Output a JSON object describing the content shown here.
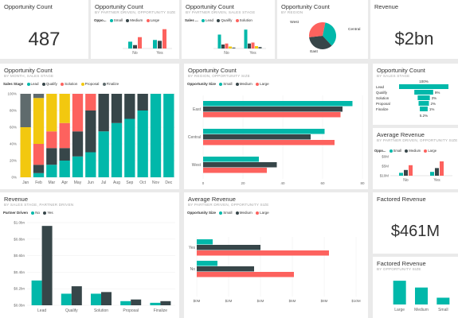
{
  "colors": {
    "small": "#01b8aa",
    "medium": "#374649",
    "large": "#fd625e",
    "lead": "#01b8aa",
    "qualify": "#374649",
    "solution": "#fd625e",
    "proposal": "#f2c80f",
    "finalize": "#5f6b6d"
  },
  "t1": {
    "title": "Opportunity Count",
    "value": "487"
  },
  "t2": {
    "title": "Opportunity Count",
    "subtitle": "BY PARTNER DRIVEN, OPPORTUNITY SIZE",
    "legend_title": "Oppo...",
    "legend": [
      "Small",
      "Medium",
      "Large"
    ],
    "chart_data": {
      "type": "bar",
      "categories": [
        "No",
        "Yes"
      ],
      "series": [
        {
          "name": "Small",
          "values": [
            24,
            30
          ]
        },
        {
          "name": "Medium",
          "values": [
            12,
            27
          ]
        },
        {
          "name": "Large",
          "values": [
            40,
            68
          ]
        }
      ]
    }
  },
  "t3": {
    "title": "Opportunity Count",
    "subtitle": "BY PARTNER DRIVEN, SALES STAGE",
    "legend_title": "Sales ...",
    "legend": [
      "Lead",
      "Qualify",
      "Solution"
    ],
    "chart_data": {
      "type": "bar",
      "categories": [
        "No",
        "Yes"
      ],
      "series": [
        {
          "name": "Lead",
          "values": [
            70,
            95
          ]
        },
        {
          "name": "Qualify",
          "values": [
            20,
            25
          ]
        },
        {
          "name": "Solution",
          "values": [
            25,
            30
          ]
        },
        {
          "name": "Proposal",
          "values": [
            10,
            12
          ]
        },
        {
          "name": "Finalize",
          "values": [
            5,
            8
          ]
        }
      ]
    }
  },
  "t4": {
    "title": "Opportunity Count",
    "subtitle": "BY REGION",
    "chart_data": {
      "type": "pie",
      "labels": [
        "Central",
        "East",
        "West"
      ],
      "values": [
        35,
        35,
        30
      ]
    }
  },
  "t5": {
    "title": "Revenue",
    "value": "$2bn"
  },
  "t6": {
    "title": "Opportunity Count",
    "subtitle": "BY MONTH, SALES STAGE",
    "legend_title": "Sales Stage",
    "legend": [
      "Lead",
      "Qualify",
      "Solution",
      "Proposal",
      "Finalize"
    ],
    "chart_data": {
      "type": "bar",
      "stacked": "100%",
      "categories": [
        "Jan",
        "Feb",
        "Mar",
        "Apr",
        "May",
        "Jun",
        "Jul",
        "Aug",
        "Sep",
        "Oct",
        "Nov",
        "Dec"
      ],
      "yticks": [
        "0%",
        "20%",
        "40%",
        "60%",
        "80%",
        "100%"
      ],
      "series": [
        {
          "name": "Lead",
          "values": [
            0,
            5,
            15,
            20,
            25,
            30,
            55,
            65,
            70,
            80,
            100,
            100
          ]
        },
        {
          "name": "Qualify",
          "values": [
            0,
            10,
            20,
            15,
            30,
            50,
            45,
            35,
            30,
            20,
            0,
            0
          ]
        },
        {
          "name": "Solution",
          "values": [
            0,
            25,
            20,
            30,
            45,
            20,
            0,
            0,
            0,
            0,
            0,
            0
          ]
        },
        {
          "name": "Proposal",
          "values": [
            60,
            55,
            45,
            35,
            0,
            0,
            0,
            0,
            0,
            0,
            0,
            0
          ]
        },
        {
          "name": "Finalize",
          "values": [
            40,
            5,
            0,
            0,
            0,
            0,
            0,
            0,
            0,
            0,
            0,
            0
          ]
        }
      ]
    }
  },
  "t7": {
    "title": "Opportunity Count",
    "subtitle": "BY REGION, OPPORTUNITY SIZE",
    "legend_title": "Opportunity Size",
    "legend": [
      "Small",
      "Medium",
      "Large"
    ],
    "chart_data": {
      "type": "bar",
      "orientation": "horizontal",
      "categories": [
        "East",
        "Central",
        "West"
      ],
      "xticks": [
        "0",
        "20",
        "40",
        "60",
        "80"
      ],
      "xlim": [
        0,
        80
      ],
      "series": [
        {
          "name": "Small",
          "values": [
            75,
            61,
            28
          ]
        },
        {
          "name": "Medium",
          "values": [
            70,
            54,
            37
          ]
        },
        {
          "name": "Large",
          "values": [
            69,
            66,
            32
          ]
        }
      ]
    }
  },
  "t8": {
    "title": "Opportunity Count",
    "subtitle": "BY SALES STAGE",
    "chart_data": {
      "type": "funnel",
      "labels": [
        "Lead",
        "Qualify",
        "Solution",
        "Proposal",
        "Finalize"
      ],
      "values": [
        100,
        9,
        3,
        2,
        1
      ],
      "value_labels": [
        "100%",
        "9%",
        "3%",
        "2%",
        "1%"
      ],
      "bottom_label": "5.2%"
    }
  },
  "t9": {
    "title": "Average Revenue",
    "subtitle": "BY PARTNER DRIVEN, OPPORTUNITY SIZE",
    "legend_title": "Oppo...",
    "legend": [
      "Small",
      "Medium",
      "Large"
    ],
    "yticks": [
      "$10M",
      "$5M",
      "$0M"
    ],
    "chart_data": {
      "type": "bar",
      "categories": [
        "No",
        "Yes"
      ],
      "series": [
        {
          "name": "Small",
          "values": [
            1.5,
            2
          ]
        },
        {
          "name": "Medium",
          "values": [
            3,
            4
          ]
        },
        {
          "name": "Large",
          "values": [
            5.5,
            7.5
          ]
        }
      ]
    }
  },
  "t10": {
    "title": "Revenue",
    "subtitle": "BY SALES STAGE, PARTNER DRIVEN",
    "legend_title": "Partner Driven",
    "legend": [
      "No",
      "Yes"
    ],
    "chart_data": {
      "type": "bar",
      "categories": [
        "Lead",
        "Qualify",
        "Solution",
        "Proposal",
        "Finalize"
      ],
      "yticks": [
        "$0.0bn",
        "$0.2bn",
        "$0.4bn",
        "$0.6bn",
        "$0.8bn",
        "$1.0bn"
      ],
      "ylim": [
        0,
        1.0
      ],
      "series": [
        {
          "name": "No",
          "values": [
            0.3,
            0.14,
            0.14,
            0.05,
            0.03
          ]
        },
        {
          "name": "Yes",
          "values": [
            0.96,
            0.23,
            0.16,
            0.07,
            0.05
          ]
        }
      ]
    }
  },
  "t11": {
    "title": "Average Revenue",
    "subtitle": "BY PARTNER DRIVEN, OPPORTUNITY SIZE",
    "legend_title": "Opportunity Size",
    "legend": [
      "Small",
      "Medium",
      "Large"
    ],
    "chart_data": {
      "type": "bar",
      "orientation": "horizontal",
      "categories": [
        "Yes",
        "No"
      ],
      "xticks": [
        "$0M",
        "$2M",
        "$4M",
        "$6M",
        "$8M",
        "$10M"
      ],
      "xlim": [
        0,
        10
      ],
      "series": [
        {
          "name": "Small",
          "values": [
            1.0,
            1.3
          ]
        },
        {
          "name": "Medium",
          "values": [
            4.0,
            3.6
          ]
        },
        {
          "name": "Large",
          "values": [
            8.3,
            6.1
          ]
        }
      ]
    }
  },
  "t12": {
    "title": "Factored Revenue",
    "value": "$461M"
  },
  "t13": {
    "title": "Factored Revenue",
    "subtitle": "BY OPPORTUNITY SIZE",
    "chart_data": {
      "type": "bar",
      "categories": [
        "Large",
        "Medium",
        "Small"
      ],
      "values": [
        0.28,
        0.2,
        0.08
      ]
    }
  }
}
